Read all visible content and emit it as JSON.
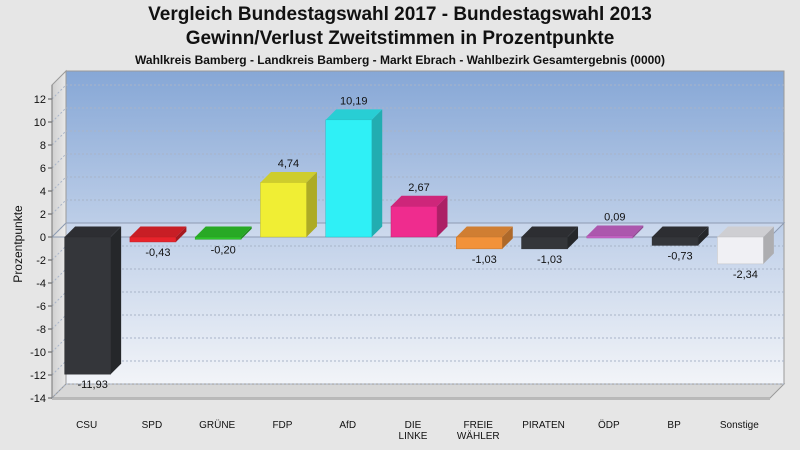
{
  "title": "Vergleich Bundestagswahl 2017 - Bundestagswahl 2013",
  "subtitle": "Gewinn/Verlust Zweitstimmen in Prozentpunkte",
  "subtitle2": "Wahlkreis Bamberg - Landkreis Bamberg - Markt Ebrach - Wahlbezirk Gesamtergebnis (0000)",
  "chart_data": {
    "type": "bar",
    "title": "Vergleich Bundestagswahl 2017 - Bundestagswahl 2013",
    "ylabel": "Prozentpunkte",
    "ylim": [
      -14,
      12
    ],
    "yticks": [
      12,
      10,
      8,
      6,
      4,
      2,
      0,
      -2,
      -4,
      -6,
      -8,
      -10,
      -12,
      -14
    ],
    "categories": [
      "CSU",
      "SPD",
      "GRÜNE",
      "FDP",
      "AfD",
      "DIE LINKE",
      "FREIE WÄHLER",
      "PIRATEN",
      "ÖDP",
      "BP",
      "Sonstige"
    ],
    "values": [
      -11.93,
      -0.43,
      -0.2,
      4.74,
      10.19,
      2.67,
      -1.03,
      -1.03,
      0.09,
      -0.73,
      -2.34
    ],
    "value_labels": [
      "-11,93",
      "-0,43",
      "-0,20",
      "4,74",
      "10,19",
      "2,67",
      "-1,03",
      "-1,03",
      "0,09",
      "-0,73",
      "-2,34"
    ],
    "colors": [
      "#34363a",
      "#e8232b",
      "#2fc42b",
      "#f0ee34",
      "#2ff0f6",
      "#ef2c8e",
      "#f2923a",
      "#34363a",
      "#c865c9",
      "#34363a",
      "#f0f0f4"
    ],
    "grid": true
  }
}
